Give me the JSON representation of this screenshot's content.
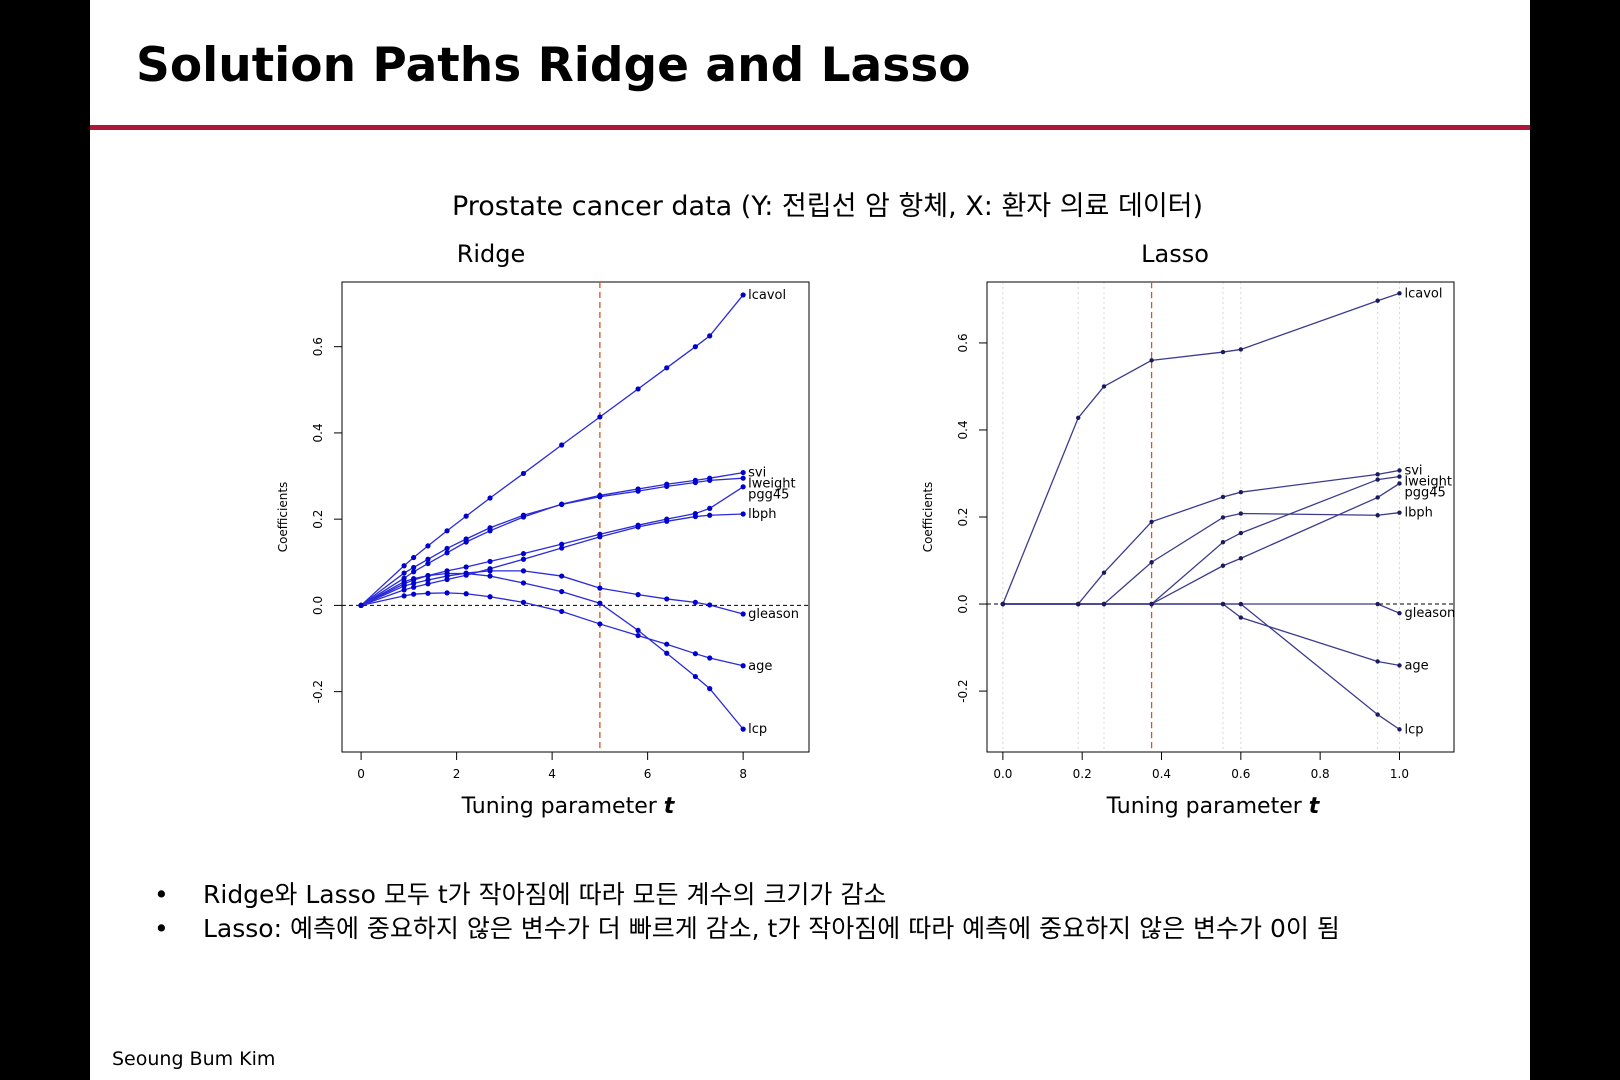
{
  "slide": {
    "title": "Solution Paths Ridge and Lasso",
    "subtitle": "Prostate cancer data (Y: 전립선 암 항체, X: 환자 의료 데이터)",
    "bullets": [
      "Ridge와 Lasso 모두 t가 작아짐에 따라 모든 계수의 크기가 감소",
      "Lasso: 예측에 중요하지 않은 변수가 더 빠르게 감소, t가 작아짐에 따라 예측에 중요하지 않은 변수가 0이 됨"
    ],
    "footer": "Seoung Bum Kim"
  },
  "colors": {
    "accent_rule": "#b0163a",
    "ridge_path": "#2b2bd9",
    "ridge_point": "#0000cc",
    "lasso_path": "#3b3b8e",
    "lasso_point": "#1a1a5e",
    "reference_line": "#d9541e"
  },
  "chart_data": [
    {
      "type": "line",
      "title": "Ridge",
      "xlabel": "Tuning parameter t",
      "ylabel": "Coefficients",
      "xlim": [
        -0.4,
        9.4
      ],
      "ylim": [
        -0.34,
        0.75
      ],
      "xticks": [
        0,
        2,
        4,
        6,
        8
      ],
      "yticks": [
        -0.2,
        0.0,
        0.2,
        0.4,
        0.6
      ],
      "reference_x": 5.0,
      "zero_line": true,
      "grid": false,
      "x": [
        0,
        0.9,
        1.1,
        1.4,
        1.8,
        2.2,
        2.7,
        3.4,
        4.2,
        5.0,
        5.8,
        6.4,
        7.0,
        7.3,
        8.0
      ],
      "series": [
        {
          "name": "lcavol",
          "values": [
            0,
            0.092,
            0.111,
            0.138,
            0.173,
            0.207,
            0.249,
            0.306,
            0.372,
            0.437,
            0.502,
            0.551,
            0.6,
            0.625,
            0.72
          ]
        },
        {
          "name": "svi",
          "values": [
            0,
            0.063,
            0.078,
            0.097,
            0.122,
            0.147,
            0.173,
            0.205,
            0.235,
            0.255,
            0.27,
            0.281,
            0.29,
            0.295,
            0.308
          ]
        },
        {
          "name": "lweight",
          "values": [
            0,
            0.075,
            0.088,
            0.107,
            0.132,
            0.154,
            0.18,
            0.209,
            0.234,
            0.252,
            0.265,
            0.276,
            0.285,
            0.29,
            0.295
          ]
        },
        {
          "name": "pgg45",
          "values": [
            0,
            0.05,
            0.059,
            0.069,
            0.08,
            0.089,
            0.102,
            0.12,
            0.142,
            0.165,
            0.186,
            0.2,
            0.213,
            0.225,
            0.275
          ]
        },
        {
          "name": "lbph",
          "values": [
            0,
            0.036,
            0.042,
            0.05,
            0.06,
            0.07,
            0.085,
            0.107,
            0.133,
            0.159,
            0.182,
            0.195,
            0.206,
            0.209,
            0.212
          ]
        },
        {
          "name": "gleason",
          "values": [
            0,
            0.045,
            0.051,
            0.059,
            0.068,
            0.075,
            0.08,
            0.08,
            0.068,
            0.04,
            0.025,
            0.015,
            0.007,
            0.001,
            -0.02
          ]
        },
        {
          "name": "age",
          "values": [
            0,
            0.022,
            0.026,
            0.028,
            0.029,
            0.027,
            0.02,
            0.007,
            -0.014,
            -0.043,
            -0.07,
            -0.09,
            -0.112,
            -0.122,
            -0.14
          ]
        },
        {
          "name": "lcp",
          "values": [
            0,
            0.055,
            0.062,
            0.069,
            0.074,
            0.074,
            0.068,
            0.052,
            0.032,
            0.005,
            -0.058,
            -0.111,
            -0.165,
            -0.193,
            -0.287
          ]
        }
      ]
    },
    {
      "type": "line",
      "title": "Lasso",
      "xlabel": "Tuning parameter t",
      "ylabel": "Coefficients",
      "xlim": [
        -0.04,
        1.14
      ],
      "ylim": [
        -0.34,
        0.74
      ],
      "xticks": [
        0.0,
        0.2,
        0.4,
        0.6,
        0.8,
        1.0
      ],
      "yticks": [
        -0.2,
        0.0,
        0.2,
        0.4,
        0.6
      ],
      "reference_x": 0.375,
      "zero_line": true,
      "grid": true,
      "x": [
        0,
        0.19,
        0.255,
        0.375,
        0.555,
        0.6,
        0.945,
        1.0
      ],
      "series": [
        {
          "name": "lcavol",
          "values": [
            0,
            0.428,
            0.5,
            0.56,
            0.579,
            0.585,
            0.697,
            0.714
          ]
        },
        {
          "name": "svi",
          "values": [
            0,
            0,
            0.072,
            0.189,
            0.246,
            0.257,
            0.298,
            0.307
          ]
        },
        {
          "name": "lweight",
          "values": [
            0,
            0,
            0,
            0,
            0.142,
            0.163,
            0.286,
            0.293
          ]
        },
        {
          "name": "pgg45",
          "values": [
            0,
            0,
            0,
            0,
            0.088,
            0.105,
            0.245,
            0.277
          ]
        },
        {
          "name": "lbph",
          "values": [
            0,
            0,
            0,
            0.096,
            0.199,
            0.208,
            0.204,
            0.21
          ]
        },
        {
          "name": "gleason",
          "values": [
            0,
            0,
            0,
            0,
            0,
            0,
            0,
            -0.021
          ]
        },
        {
          "name": "age",
          "values": [
            0,
            0,
            0,
            0,
            0,
            -0.031,
            -0.132,
            -0.141
          ]
        },
        {
          "name": "lcp",
          "values": [
            0,
            0,
            0,
            0,
            0,
            0,
            -0.254,
            -0.288
          ]
        }
      ]
    }
  ]
}
